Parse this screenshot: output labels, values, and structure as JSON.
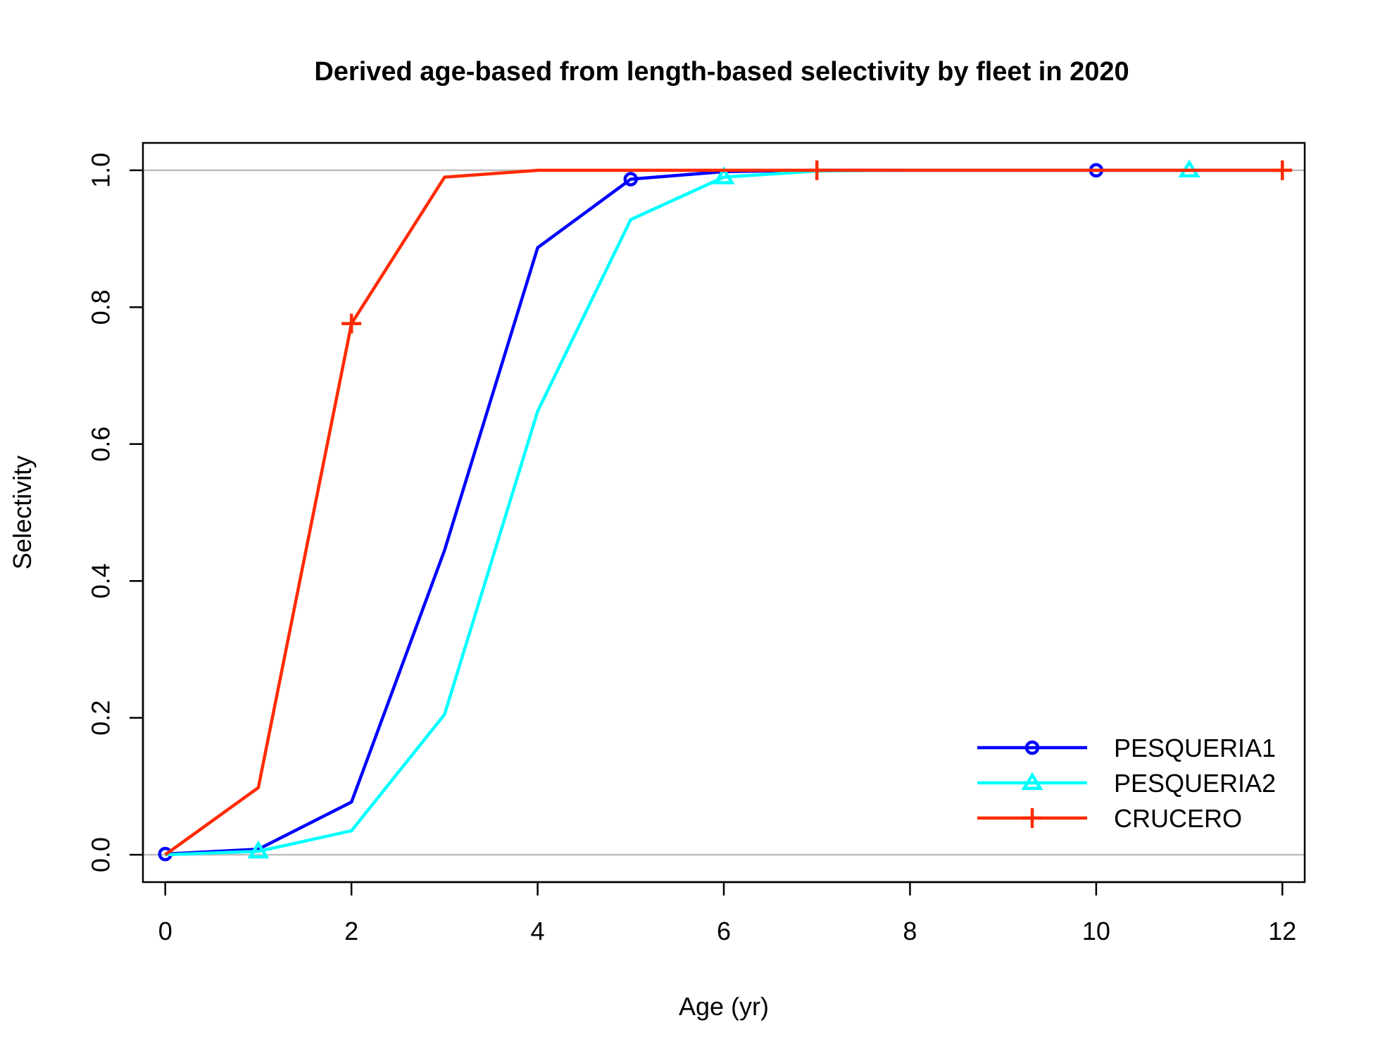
{
  "chart_data": {
    "type": "line",
    "title": "Derived age-based from length-based selectivity by fleet in 2020",
    "xlabel": "Age (yr)",
    "ylabel": "Selectivity",
    "xlim": [
      -0.24,
      12.24
    ],
    "ylim": [
      -0.04,
      1.04
    ],
    "x_ticks": [
      0,
      2,
      4,
      6,
      8,
      10,
      12
    ],
    "x_tick_labels": [
      "0",
      "2",
      "4",
      "6",
      "8",
      "10",
      "12"
    ],
    "y_ticks": [
      0.0,
      0.2,
      0.4,
      0.6,
      0.8,
      1.0
    ],
    "y_tick_labels": [
      "0.0",
      "0.2",
      "0.4",
      "0.6",
      "0.8",
      "1.0"
    ],
    "reference_lines_y": [
      0,
      1
    ],
    "reference_line_color": "#bebebe",
    "legend_position": "bottom-right",
    "x": [
      0,
      1,
      2,
      3,
      4,
      5,
      6,
      7,
      8,
      9,
      10,
      11,
      12
    ],
    "series": [
      {
        "name": "PESQUERIA1",
        "color": "#0000ff",
        "marker": "circle",
        "marker_x": [
          0,
          5,
          10
        ],
        "values": [
          0.001,
          0.008,
          0.077,
          0.445,
          0.887,
          0.987,
          0.998,
          1.0,
          1.0,
          1.0,
          1.0,
          1.0,
          1.0
        ]
      },
      {
        "name": "PESQUERIA2",
        "color": "#00ffff",
        "marker": "triangle",
        "marker_x": [
          1,
          6,
          11
        ],
        "values": [
          0.0,
          0.005,
          0.035,
          0.205,
          0.648,
          0.928,
          0.99,
          0.999,
          1.0,
          1.0,
          1.0,
          1.0,
          1.0
        ]
      },
      {
        "name": "CRUCERO",
        "color": "#ff2a00",
        "marker": "plus",
        "marker_x": [
          2,
          7,
          12
        ],
        "values": [
          0.0,
          0.098,
          0.776,
          0.99,
          1.0,
          1.0,
          1.0,
          1.0,
          1.0,
          1.0,
          1.0,
          1.0,
          1.0
        ]
      }
    ]
  }
}
